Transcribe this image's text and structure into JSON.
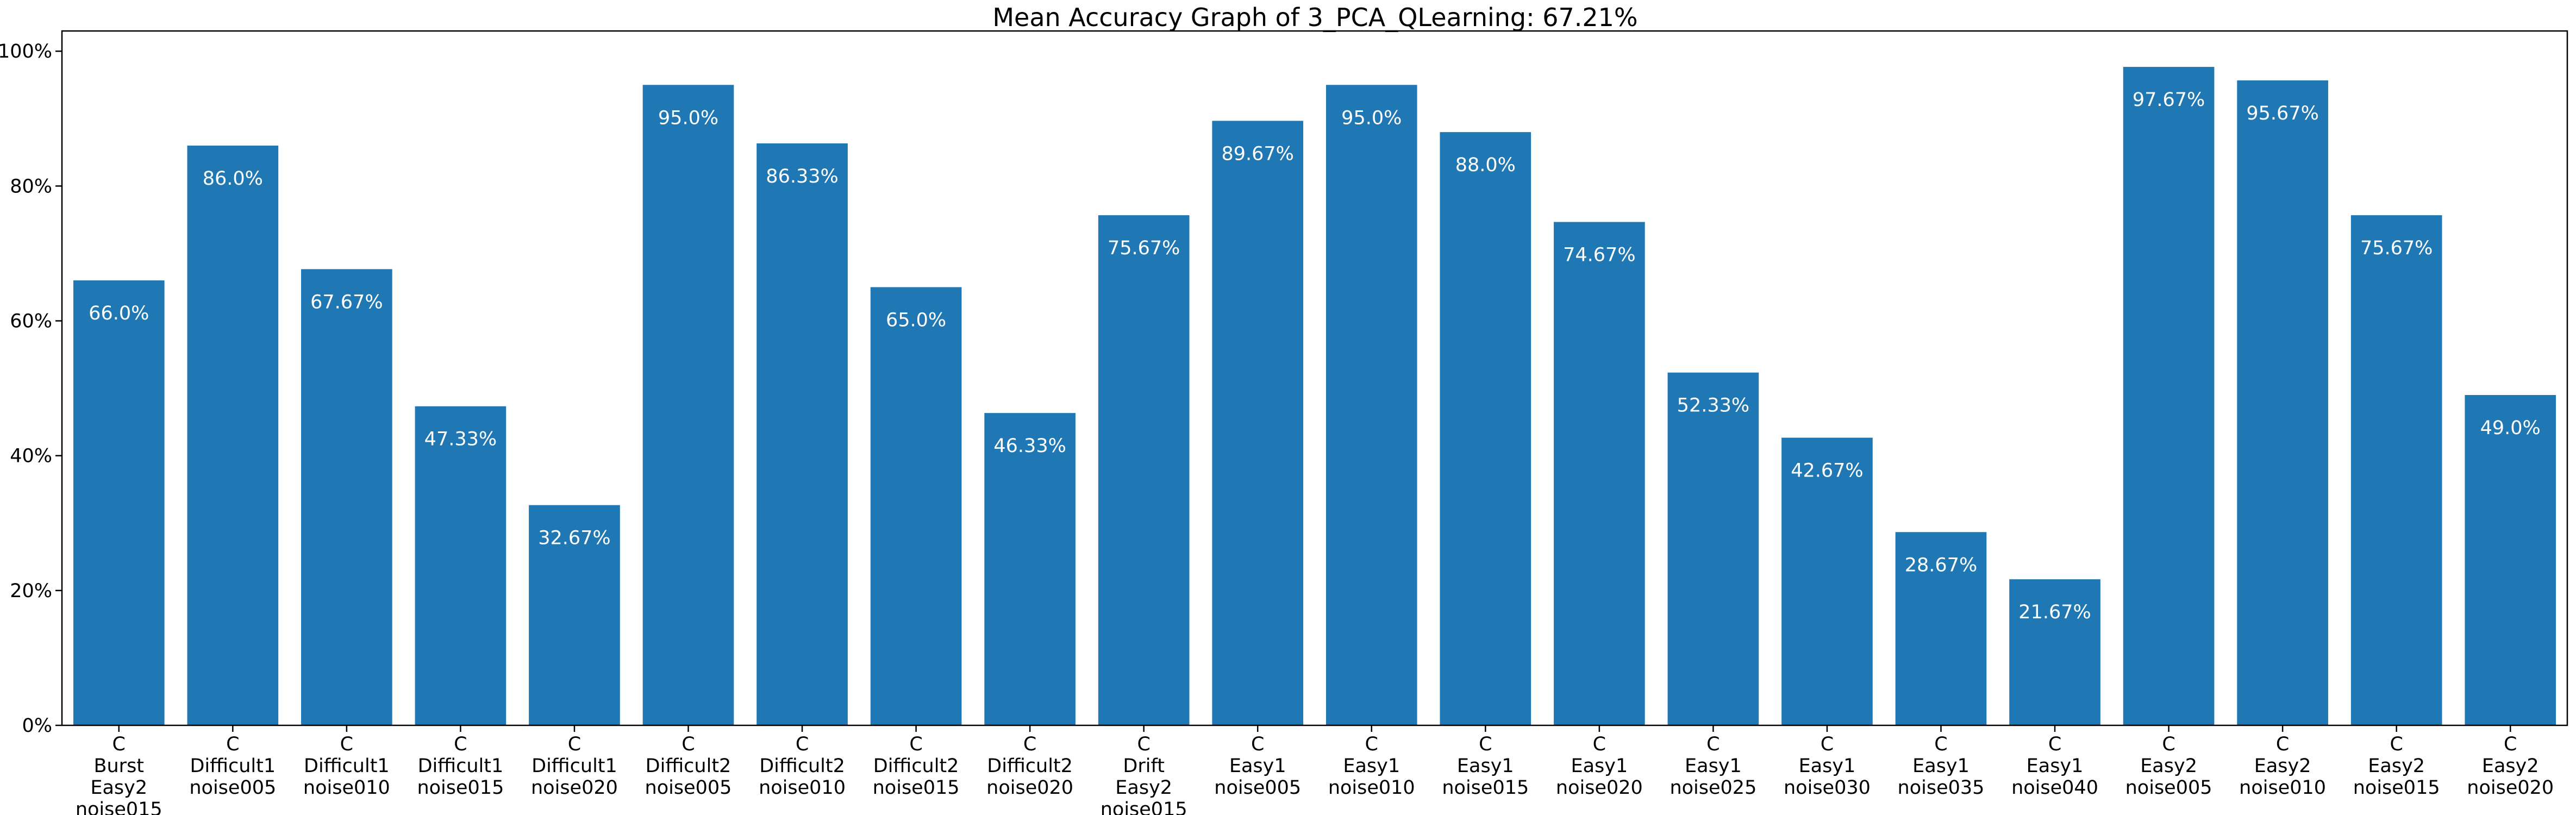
{
  "chart_data": {
    "type": "bar",
    "title": "Mean Accuracy Graph of 3_PCA_QLearning: 67.21%",
    "xlabel": "",
    "ylabel": "",
    "ylim": [
      0,
      103
    ],
    "yticks": [
      0,
      20,
      40,
      60,
      80,
      100
    ],
    "ytick_labels": [
      "0%",
      "20%",
      "40%",
      "60%",
      "80%",
      "100%"
    ],
    "bar_color": "#1f77b4",
    "value_label_color": "#ffffff",
    "grid": false,
    "categories": [
      [
        "C",
        "Burst",
        "Easy2",
        "noise015"
      ],
      [
        "C",
        "Difficult1",
        "noise005"
      ],
      [
        "C",
        "Difficult1",
        "noise010"
      ],
      [
        "C",
        "Difficult1",
        "noise015"
      ],
      [
        "C",
        "Difficult1",
        "noise020"
      ],
      [
        "C",
        "Difficult2",
        "noise005"
      ],
      [
        "C",
        "Difficult2",
        "noise010"
      ],
      [
        "C",
        "Difficult2",
        "noise015"
      ],
      [
        "C",
        "Difficult2",
        "noise020"
      ],
      [
        "C",
        "Drift",
        "Easy2",
        "noise015"
      ],
      [
        "C",
        "Easy1",
        "noise005"
      ],
      [
        "C",
        "Easy1",
        "noise010"
      ],
      [
        "C",
        "Easy1",
        "noise015"
      ],
      [
        "C",
        "Easy1",
        "noise020"
      ],
      [
        "C",
        "Easy1",
        "noise025"
      ],
      [
        "C",
        "Easy1",
        "noise030"
      ],
      [
        "C",
        "Easy1",
        "noise035"
      ],
      [
        "C",
        "Easy1",
        "noise040"
      ],
      [
        "C",
        "Easy2",
        "noise005"
      ],
      [
        "C",
        "Easy2",
        "noise010"
      ],
      [
        "C",
        "Easy2",
        "noise015"
      ],
      [
        "C",
        "Easy2",
        "noise020"
      ]
    ],
    "values": [
      66.0,
      86.0,
      67.67,
      47.33,
      32.67,
      95.0,
      86.33,
      65.0,
      46.33,
      75.67,
      89.67,
      95.0,
      88.0,
      74.67,
      52.33,
      42.67,
      28.67,
      21.67,
      97.67,
      95.67,
      75.67,
      49.0
    ],
    "value_labels": [
      "66.0%",
      "86.0%",
      "67.67%",
      "47.33%",
      "32.67%",
      "95.0%",
      "86.33%",
      "65.0%",
      "46.33%",
      "75.67%",
      "89.67%",
      "95.0%",
      "88.0%",
      "74.67%",
      "52.33%",
      "42.67%",
      "28.67%",
      "21.67%",
      "97.67%",
      "95.67%",
      "75.67%",
      "49.0%"
    ]
  }
}
